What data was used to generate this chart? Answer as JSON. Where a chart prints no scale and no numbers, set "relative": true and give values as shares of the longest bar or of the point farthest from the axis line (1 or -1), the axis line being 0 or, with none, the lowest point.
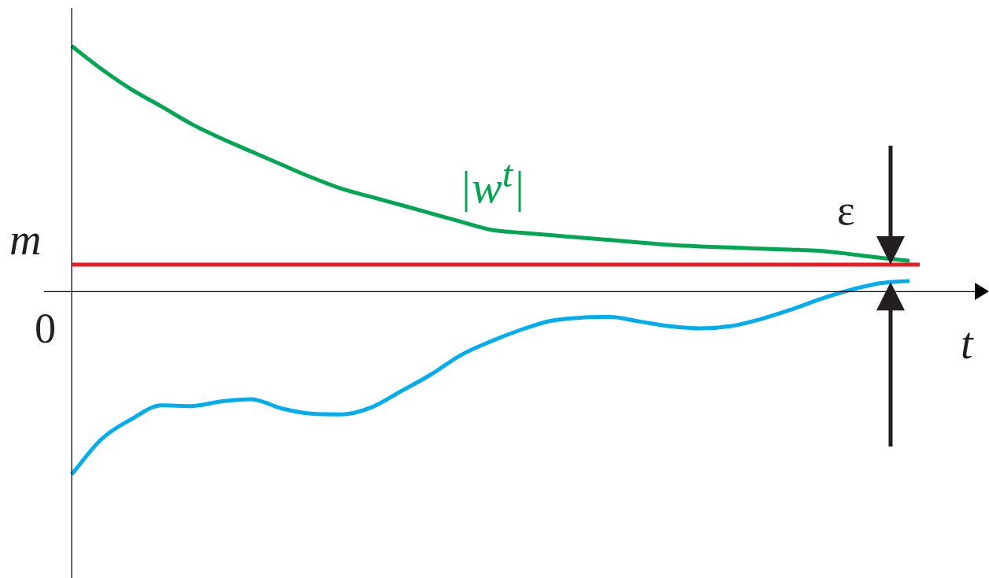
{
  "chart_data": {
    "type": "line",
    "relative": true,
    "xlabel": "t",
    "grid": false,
    "legend": false,
    "marker": "none",
    "categories": [
      null,
      null,
      null,
      null,
      null,
      null,
      null,
      null,
      null,
      null,
      null,
      null,
      null,
      null,
      null,
      null,
      null,
      null,
      null,
      null,
      null,
      null,
      null,
      null,
      null,
      null,
      null,
      null,
      null
    ],
    "series": [
      {
        "name": "|w$^{t}$|",
        "color": "#00a651",
        "values": [
          1.0,
          0.906,
          0.823,
          0.754,
          0.683,
          0.624,
          0.571,
          0.518,
          0.466,
          0.42,
          0.386,
          0.353,
          0.319,
          0.285,
          0.252,
          0.24,
          0.23,
          0.22,
          0.21,
          0.2,
          0.19,
          0.184,
          0.18,
          0.175,
          0.171,
          0.166,
          0.153,
          0.138,
          0.125
        ]
      },
      {
        "color": "#00aeef",
        "values": [
          -0.744,
          -0.6,
          -0.519,
          -0.463,
          -0.466,
          -0.447,
          -0.438,
          -0.475,
          -0.497,
          -0.5,
          -0.472,
          -0.406,
          -0.338,
          -0.259,
          -0.203,
          -0.156,
          -0.119,
          -0.106,
          -0.103,
          -0.122,
          -0.141,
          -0.15,
          -0.141,
          -0.113,
          -0.075,
          -0.031,
          0.006,
          0.034,
          0.044
        ]
      }
    ],
    "ref_lines": [
      {
        "axis": "y",
        "value": 0.11,
        "label": "m",
        "color": "#ed1c24"
      }
    ],
    "annotations": [
      "0",
      "ε"
    ]
  }
}
